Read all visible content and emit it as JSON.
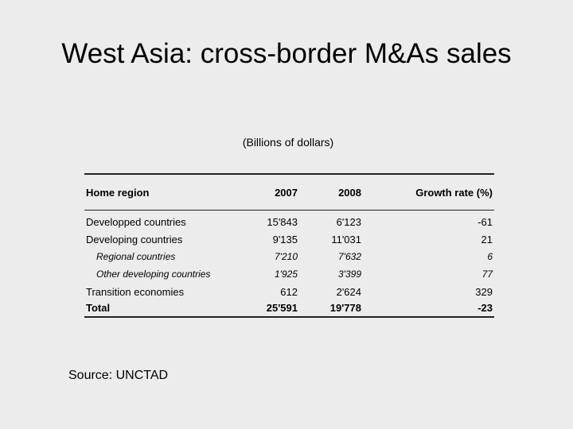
{
  "title": "West Asia: cross-border M&As sales",
  "subtitle": "(Billions of dollars)",
  "table": {
    "headers": [
      "Home region",
      "2007",
      "2008",
      "Growth rate (%)"
    ],
    "rows": [
      {
        "kind": "main",
        "cells": [
          "Developped countries",
          "15'843",
          "6'123",
          "-61"
        ]
      },
      {
        "kind": "main",
        "cells": [
          "Developing countries",
          "9'135",
          "11'031",
          "21"
        ]
      },
      {
        "kind": "sub",
        "cells": [
          "Regional countries",
          "7'210",
          "7'632",
          "6"
        ]
      },
      {
        "kind": "sub",
        "cells": [
          "Other developing countries",
          "1'925",
          "3'399",
          "77"
        ]
      },
      {
        "kind": "main",
        "cells": [
          "Transition economies",
          "612",
          "2'624",
          "329"
        ]
      },
      {
        "kind": "total",
        "cells": [
          "Total",
          "25'591",
          "19'778",
          "-23"
        ]
      }
    ]
  },
  "source": "Source: UNCTAD"
}
